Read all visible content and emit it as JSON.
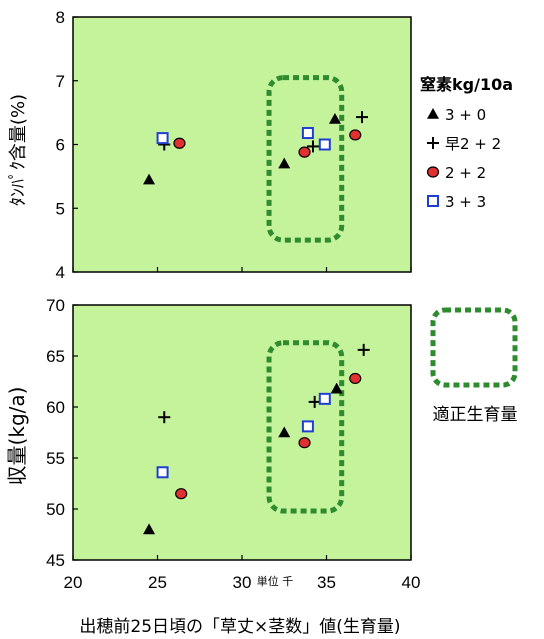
{
  "colors": {
    "plot_bg": "#c5f39b",
    "optimal_region": "#2e8b2e",
    "triangle": "#000000",
    "plus": "#000000",
    "circle_fill": "#e03030",
    "square_edge": "#1f3fd0"
  },
  "legend": {
    "title": "窒素kg/10a",
    "optimal_label": "適正生育量"
  },
  "xaxis": {
    "unit_label": "単位 千",
    "label": "出穂前25日頃の「草丈×茎数」値(生育量)"
  },
  "chart_data": [
    {
      "type": "scatter",
      "title": "",
      "xlabel": "出穂前25日頃の「草丈×茎数」値(生育量)",
      "ylabel": "ﾀﾝﾊﾟｸ含量(%)",
      "xlim": [
        20,
        40
      ],
      "ylim": [
        4,
        8
      ],
      "xticks": [
        "20",
        "25",
        "30",
        "35",
        "40"
      ],
      "yticks": [
        "4",
        "5",
        "6",
        "7",
        "8"
      ],
      "optimal_region": {
        "x": [
          31.6,
          35.9
        ],
        "y": [
          4.5,
          7.05
        ]
      },
      "series": [
        {
          "name": "3 + 0",
          "marker": "triangle",
          "points": [
            [
              24.5,
              5.45
            ],
            [
              32.5,
              5.7
            ],
            [
              35.5,
              6.4
            ]
          ]
        },
        {
          "name": "早2 + 2",
          "marker": "plus",
          "points": [
            [
              25.4,
              6.0
            ],
            [
              34.2,
              5.97
            ],
            [
              37.1,
              6.43
            ]
          ]
        },
        {
          "name": "2 + 2",
          "marker": "circle",
          "points": [
            [
              26.3,
              6.02
            ],
            [
              33.7,
              5.88
            ],
            [
              36.7,
              6.15
            ]
          ]
        },
        {
          "name": "3 + 3",
          "marker": "square",
          "points": [
            [
              25.3,
              6.1
            ],
            [
              33.9,
              6.18
            ],
            [
              34.9,
              6.0
            ]
          ]
        }
      ]
    },
    {
      "type": "scatter",
      "title": "",
      "xlabel": "出穂前25日頃の「草丈×茎数」値(生育量)",
      "ylabel": "収量(kg/a)",
      "xlim": [
        20,
        40
      ],
      "ylim": [
        45,
        70
      ],
      "xticks": [
        "20",
        "25",
        "30",
        "35",
        "40"
      ],
      "yticks": [
        "45",
        "50",
        "55",
        "60",
        "65",
        "70"
      ],
      "optimal_region": {
        "x": [
          31.6,
          35.9
        ],
        "y": [
          49.8,
          66.3
        ]
      },
      "series": [
        {
          "name": "3 + 0",
          "marker": "triangle",
          "points": [
            [
              24.5,
              48.0
            ],
            [
              32.5,
              57.5
            ],
            [
              35.6,
              61.8
            ]
          ]
        },
        {
          "name": "早2 + 2",
          "marker": "plus",
          "points": [
            [
              25.4,
              59.0
            ],
            [
              34.3,
              60.5
            ],
            [
              37.2,
              65.6
            ]
          ]
        },
        {
          "name": "2 + 2",
          "marker": "circle",
          "points": [
            [
              26.4,
              51.5
            ],
            [
              33.7,
              56.5
            ],
            [
              36.7,
              62.8
            ]
          ]
        },
        {
          "name": "3 + 3",
          "marker": "square",
          "points": [
            [
              25.3,
              53.6
            ],
            [
              33.9,
              58.1
            ],
            [
              34.9,
              60.8
            ]
          ]
        }
      ]
    }
  ]
}
